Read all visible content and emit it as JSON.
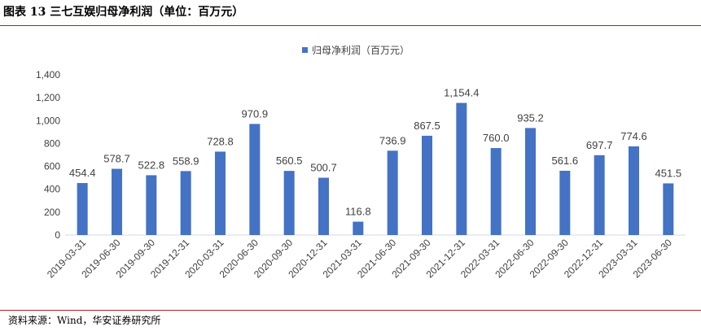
{
  "title": "图表 13 三七互娱归母净利润（单位：百万元）",
  "source": "资料来源：Wind，华安证券研究所",
  "colors": {
    "bar": "#4472c4",
    "rule": "#b01f24",
    "axis": "#d9d9d9"
  },
  "chart_data": {
    "type": "bar",
    "categories": [
      "2019-03-31",
      "2019-06-30",
      "2019-09-30",
      "2019-12-31",
      "2020-03-31",
      "2020-06-30",
      "2020-09-30",
      "2020-12-31",
      "2021-03-31",
      "2021-06-30",
      "2021-09-30",
      "2021-12-31",
      "2022-03-31",
      "2022-06-30",
      "2022-09-30",
      "2022-12-31",
      "2023-03-31",
      "2023-06-30"
    ],
    "series": [
      {
        "name": "归母净利润（百万元）",
        "values": [
          454.4,
          578.7,
          522.8,
          558.9,
          728.8,
          970.9,
          560.5,
          500.7,
          116.8,
          736.9,
          867.5,
          1154.4,
          760.0,
          935.2,
          561.6,
          697.7,
          774.6,
          451.5
        ],
        "labels": [
          "454.4",
          "578.7",
          "522.8",
          "558.9",
          "728.8",
          "970.9",
          "560.5",
          "500.7",
          "116.8",
          "736.9",
          "867.5",
          "1,154.4",
          "760.0",
          "935.2",
          "561.6",
          "697.7",
          "774.6",
          "451.5"
        ]
      }
    ],
    "yticks": [
      0,
      200,
      400,
      600,
      800,
      1000,
      1200,
      1400
    ],
    "ytick_labels": [
      "0",
      "200",
      "400",
      "600",
      "800",
      "1,000",
      "1,200",
      "1,400"
    ],
    "ylim": [
      0,
      1400
    ],
    "legend_position": "top",
    "grid": false
  }
}
